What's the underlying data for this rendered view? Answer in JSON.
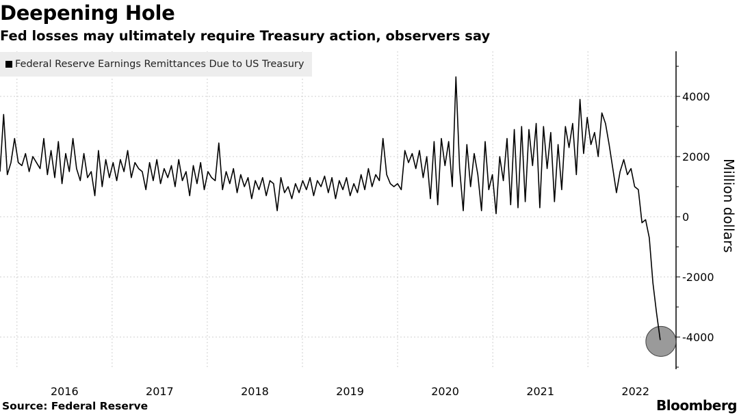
{
  "header": {
    "title": "Deepening Hole",
    "subtitle": "Fed losses may ultimately require Treasury action, observers say"
  },
  "footer": {
    "source": "Source: Federal Reserve",
    "brand": "Bloomberg"
  },
  "colors": {
    "line": "#000000",
    "highlight_circle": "#9a9a9a",
    "legend_bg": "#ededed"
  },
  "chart_data": {
    "type": "line",
    "title": "Deepening Hole",
    "subtitle": "Fed losses may ultimately require Treasury action, observers say",
    "ylabel": "Million dollars",
    "ylim": [
      -5000,
      5500
    ],
    "y_ticks": [
      4000,
      2000,
      0,
      -2000,
      -4000
    ],
    "y_tick_labels": [
      "4000",
      "2000",
      "0",
      "-2000",
      "-4000"
    ],
    "x_tick_labels": [
      "2016",
      "2017",
      "2018",
      "2019",
      "2020",
      "2021",
      "2022"
    ],
    "xlim": [
      "2015-10-28",
      "2022-12-05"
    ],
    "grid": true,
    "legend": "top-left",
    "highlight": "last point circled",
    "series": [
      {
        "name": "Federal Reserve Earnings Remittances Due to US Treasury",
        "start_date": "2015-10-28",
        "frequency": "biweekly",
        "values": [
          1500,
          3400,
          1400,
          1800,
          2600,
          1800,
          1700,
          2100,
          1500,
          2000,
          1800,
          1600,
          2600,
          1400,
          2200,
          1300,
          2500,
          1100,
          2100,
          1500,
          2600,
          1600,
          1200,
          2100,
          1300,
          1500,
          700,
          2200,
          1000,
          1900,
          1300,
          1800,
          1200,
          1900,
          1500,
          2200,
          1300,
          1800,
          1600,
          1500,
          900,
          1800,
          1200,
          1900,
          1100,
          1600,
          1300,
          1700,
          1000,
          1900,
          1200,
          1500,
          700,
          1700,
          1100,
          1800,
          900,
          1500,
          1300,
          1200,
          2450,
          900,
          1500,
          1100,
          1600,
          800,
          1400,
          1000,
          1300,
          600,
          1200,
          900,
          1300,
          700,
          1200,
          1100,
          200,
          1300,
          800,
          1000,
          600,
          1100,
          800,
          1200,
          900,
          1300,
          700,
          1200,
          1000,
          1350,
          800,
          1300,
          600,
          1200,
          900,
          1300,
          700,
          1100,
          800,
          1400,
          900,
          1600,
          1000,
          1400,
          1200,
          2600,
          1400,
          1100,
          1000,
          1100,
          900,
          2200,
          1800,
          2100,
          1600,
          2200,
          1300,
          2000,
          600,
          2500,
          400,
          2600,
          1700,
          2500,
          1000,
          4650,
          1600,
          200,
          2400,
          1000,
          2100,
          1400,
          200,
          2500,
          900,
          1400,
          100,
          2000,
          1200,
          2600,
          400,
          2900,
          300,
          3000,
          500,
          2900,
          1700,
          3100,
          300,
          3000,
          1600,
          2800,
          500,
          2400,
          900,
          3000,
          2300,
          3100,
          1400,
          3900,
          2100,
          3300,
          2400,
          2800,
          2000,
          3450,
          3100,
          2400,
          1600,
          800,
          1500,
          1900,
          1400,
          1600,
          1000,
          900,
          -200,
          -100,
          -700,
          -2200,
          -3200,
          -4100
        ]
      }
    ]
  }
}
